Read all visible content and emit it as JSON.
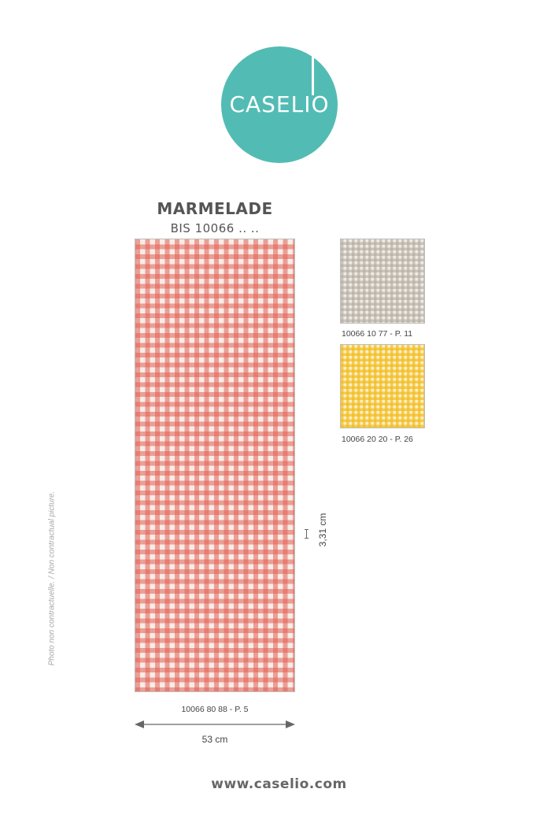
{
  "logo": {
    "text": "CASELIO",
    "color": "#52bcb4"
  },
  "collection": {
    "title": "MARMELADE",
    "subtitle": "BIS 10066 .. .."
  },
  "swatches": {
    "main": {
      "ref": "10066 80 88 - P. 5",
      "color": "#e26054"
    },
    "variant_1": {
      "ref": "10066 10 77 - P. 11",
      "color": "#b4aa9e"
    },
    "variant_2": {
      "ref": "10066 20 20 - P. 26",
      "color": "#f2bc1c"
    }
  },
  "dimensions": {
    "repeat": "3,31 cm",
    "width": "53 cm"
  },
  "disclaimer": "Photo non contractuelle. / Non contractual picture.",
  "website": "www.caselio.com"
}
